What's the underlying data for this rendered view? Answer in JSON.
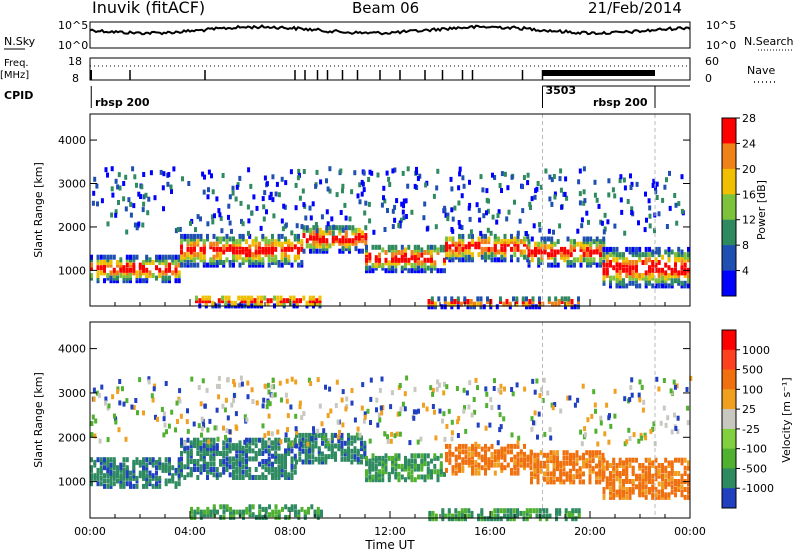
{
  "header": {
    "station": "Inuvik (fitACF)",
    "beam": "Beam 06",
    "date": "21/Feb/2014"
  },
  "top_panels": {
    "nsky_label": "N.Sky",
    "nsky_ticks": [
      "10^5",
      "10^0"
    ],
    "nsearch_label": "N.Search",
    "nsearch_ticks": [
      "10^5",
      "10^0"
    ],
    "freq_label": "Freq.",
    "freq_unit": "[MHz]",
    "freq_ticks": [
      "18",
      "8"
    ],
    "nave_label": "Nave",
    "nave_ticks": [
      "60",
      "0"
    ],
    "cpid_label": "CPID",
    "cpid_segments": [
      {
        "start_h": 0.0,
        "end_h": 18.1,
        "label": "rbsp 200"
      },
      {
        "start_h": 18.1,
        "end_h": 22.6,
        "label": "3503"
      },
      {
        "start_h": 18.1,
        "end_h": 22.6,
        "label": "rbsp 200"
      }
    ]
  },
  "chart_data": [
    {
      "type": "heatmap",
      "name": "power",
      "ylabel": "Slant Range [km]",
      "xlim": [
        0,
        24
      ],
      "ylim": [
        180,
        4600
      ],
      "yticks": [
        "1000",
        "2000",
        "3000",
        "4000"
      ],
      "colorbar_label": "Power [dB]",
      "colorbar_ticks": [
        "4",
        "8",
        "12",
        "16",
        "20",
        "24",
        "28"
      ],
      "colors": [
        "#0000ff",
        "#1f4fb0",
        "#2f8a60",
        "#7cc23a",
        "#f0c000",
        "#f08018",
        "#ff0000"
      ]
    },
    {
      "type": "heatmap",
      "name": "velocity",
      "ylabel": "Slant Range [km]",
      "xlabel": "Time UT",
      "xlim": [
        0,
        24
      ],
      "ylim": [
        180,
        4600
      ],
      "xticks": [
        "00:00",
        "04:00",
        "08:00",
        "12:00",
        "16:00",
        "20:00",
        "00:00"
      ],
      "yticks": [
        "1000",
        "2000",
        "3000",
        "4000"
      ],
      "colorbar_label": "Velocity [m s⁻¹]",
      "colorbar_ticks": [
        "1000",
        "500",
        "100",
        "25",
        "-25",
        "-100",
        "-500",
        "-1000"
      ],
      "colors": [
        "#2040c0",
        "#2e8a60",
        "#50b030",
        "#80d040",
        "#c8c8c0",
        "#f0a020",
        "#f07010",
        "#ff4020",
        "#ff0000"
      ]
    }
  ]
}
